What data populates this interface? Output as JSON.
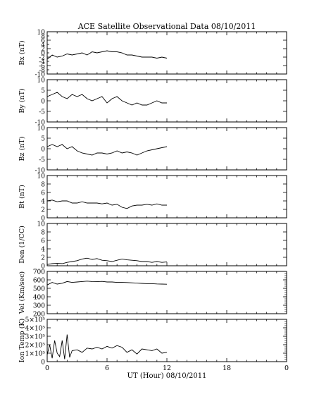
{
  "figure": {
    "title": "ACE Satellite Observational Data   08/10/2011",
    "xlabel": "UT (Hour)   08/10/2011",
    "x_ticks": [
      "0",
      "6",
      "12",
      "18",
      "0"
    ]
  },
  "chart_data": [
    {
      "type": "line",
      "ylabel": "Bx (nT)",
      "xlim": [
        0,
        24
      ],
      "ylim": [
        -10,
        10
      ],
      "yticks": [
        "-10",
        "-6",
        "-2",
        "2",
        "6",
        "10"
      ],
      "yticks_right": [
        "-8",
        "-4",
        "0",
        "4",
        "8"
      ],
      "series": [
        {
          "x": [
            0,
            0.5,
            1,
            1.5,
            2,
            2.5,
            3,
            3.5,
            4,
            4.5,
            5,
            5.5,
            6,
            6.5,
            7,
            7.5,
            8,
            8.5,
            9,
            9.5,
            10,
            10.5,
            11,
            11.5,
            12
          ],
          "values": [
            -3,
            -1,
            -2,
            -1.5,
            -0.5,
            -1,
            -0.5,
            0,
            -1,
            0.5,
            0,
            0.5,
            1,
            0.5,
            0.5,
            0,
            -1,
            -1,
            -1.5,
            -2,
            -2,
            -2,
            -2.5,
            -2,
            -2.5
          ]
        }
      ]
    },
    {
      "type": "line",
      "ylabel": "By (nT)",
      "xlim": [
        0,
        24
      ],
      "ylim": [
        -10,
        10
      ],
      "yticks": [
        "-10",
        "-5",
        "0",
        "5",
        "10"
      ],
      "series": [
        {
          "x": [
            0,
            0.5,
            1,
            1.5,
            2,
            2.5,
            3,
            3.5,
            4,
            4.5,
            5,
            5.5,
            6,
            6.5,
            7,
            7.5,
            8,
            8.5,
            9,
            9.5,
            10,
            10.5,
            11,
            11.5,
            12
          ],
          "values": [
            2,
            3,
            4,
            2,
            1,
            3,
            2,
            3,
            1,
            0,
            1,
            2,
            -1,
            1,
            2,
            0,
            -1,
            -2,
            -1,
            -2,
            -2,
            -1,
            0,
            -1,
            -1
          ]
        }
      ]
    },
    {
      "type": "line",
      "ylabel": "Bz (nT)",
      "xlim": [
        0,
        24
      ],
      "ylim": [
        -10,
        10
      ],
      "yticks": [
        "-10",
        "-5",
        "0",
        "5",
        "10"
      ],
      "series": [
        {
          "x": [
            0,
            0.5,
            1,
            1.5,
            2,
            2.5,
            3,
            3.5,
            4,
            4.5,
            5,
            5.5,
            6,
            6.5,
            7,
            7.5,
            8,
            8.5,
            9,
            9.5,
            10,
            10.5,
            11,
            11.5,
            12
          ],
          "values": [
            1,
            2,
            1,
            2,
            0,
            1,
            -1,
            -2,
            -2.5,
            -3,
            -2,
            -2,
            -2.5,
            -2,
            -1,
            -2,
            -1.5,
            -2,
            -3,
            -2,
            -1,
            -0.5,
            0,
            0.5,
            1
          ]
        }
      ]
    },
    {
      "type": "line",
      "ylabel": "Bt (nT)",
      "xlim": [
        0,
        24
      ],
      "ylim": [
        0,
        10
      ],
      "yticks": [
        "0",
        "2",
        "4",
        "6",
        "8",
        "10"
      ],
      "series": [
        {
          "x": [
            0,
            0.5,
            1,
            1.5,
            2,
            2.5,
            3,
            3.5,
            4,
            4.5,
            5,
            5.5,
            6,
            6.5,
            7,
            7.5,
            8,
            8.5,
            9,
            9.5,
            10,
            10.5,
            11,
            11.5,
            12
          ],
          "values": [
            4,
            4.2,
            3.8,
            4,
            4,
            3.5,
            3.5,
            3.8,
            3.5,
            3.5,
            3.5,
            3.3,
            3.5,
            3,
            3.2,
            2.5,
            2.2,
            2.8,
            3,
            3,
            3.2,
            3,
            3.3,
            3,
            3
          ]
        }
      ]
    },
    {
      "type": "line",
      "ylabel": "Den (1/CC)",
      "xlim": [
        0,
        24
      ],
      "ylim": [
        0,
        10
      ],
      "yticks": [
        "0",
        "2",
        "4",
        "6",
        "8",
        "10"
      ],
      "series": [
        {
          "x": [
            0,
            0.5,
            1,
            1.5,
            2,
            2.5,
            3,
            3.5,
            4,
            4.5,
            5,
            5.5,
            6,
            6.5,
            7,
            7.5,
            8,
            8.5,
            9,
            9.5,
            10,
            10.5,
            11,
            11.5,
            12
          ],
          "values": [
            0.3,
            0.5,
            0.6,
            0.5,
            0.8,
            1,
            1.2,
            1.6,
            1.8,
            1.5,
            1.7,
            1.3,
            1.2,
            1,
            1.3,
            1.6,
            1.4,
            1.3,
            1.2,
            1,
            1,
            0.8,
            1,
            0.8,
            0.9
          ]
        }
      ]
    },
    {
      "type": "line",
      "ylabel": "Vel (Km/sec)",
      "xlim": [
        0,
        24
      ],
      "ylim": [
        200,
        700
      ],
      "yticks": [
        "200",
        "300",
        "400",
        "500",
        "600",
        "700"
      ],
      "series": [
        {
          "x": [
            0,
            0.5,
            1,
            1.5,
            2,
            2.5,
            3,
            3.5,
            4,
            4.5,
            5,
            5.5,
            6,
            6.5,
            7,
            7.5,
            8,
            8.5,
            9,
            9.5,
            10,
            10.5,
            11,
            11.5,
            12
          ],
          "values": [
            540,
            570,
            550,
            560,
            580,
            570,
            575,
            580,
            585,
            580,
            578,
            582,
            575,
            575,
            570,
            570,
            568,
            565,
            562,
            558,
            555,
            555,
            552,
            550,
            548
          ]
        }
      ]
    },
    {
      "type": "line",
      "ylabel": "Ion Temp (K)",
      "xlim": [
        0,
        24
      ],
      "ylim": [
        0,
        500000
      ],
      "yticks": [
        "0",
        "1×10⁵",
        "2×10⁵",
        "3×10⁵",
        "4×10⁵",
        "5×10⁵"
      ],
      "series": [
        {
          "x": [
            0,
            0.25,
            0.5,
            0.75,
            1,
            1.25,
            1.5,
            1.75,
            2,
            2.25,
            2.5,
            3,
            3.5,
            4,
            4.5,
            5,
            5.5,
            6,
            6.5,
            7,
            7.5,
            8,
            8.5,
            9,
            9.5,
            10,
            10.5,
            11,
            11.5,
            12
          ],
          "values": [
            80000,
            200000,
            40000,
            250000,
            100000,
            60000,
            250000,
            30000,
            320000,
            50000,
            130000,
            140000,
            110000,
            160000,
            150000,
            170000,
            150000,
            180000,
            160000,
            190000,
            170000,
            110000,
            140000,
            90000,
            150000,
            140000,
            130000,
            150000,
            100000,
            110000
          ]
        }
      ]
    }
  ]
}
